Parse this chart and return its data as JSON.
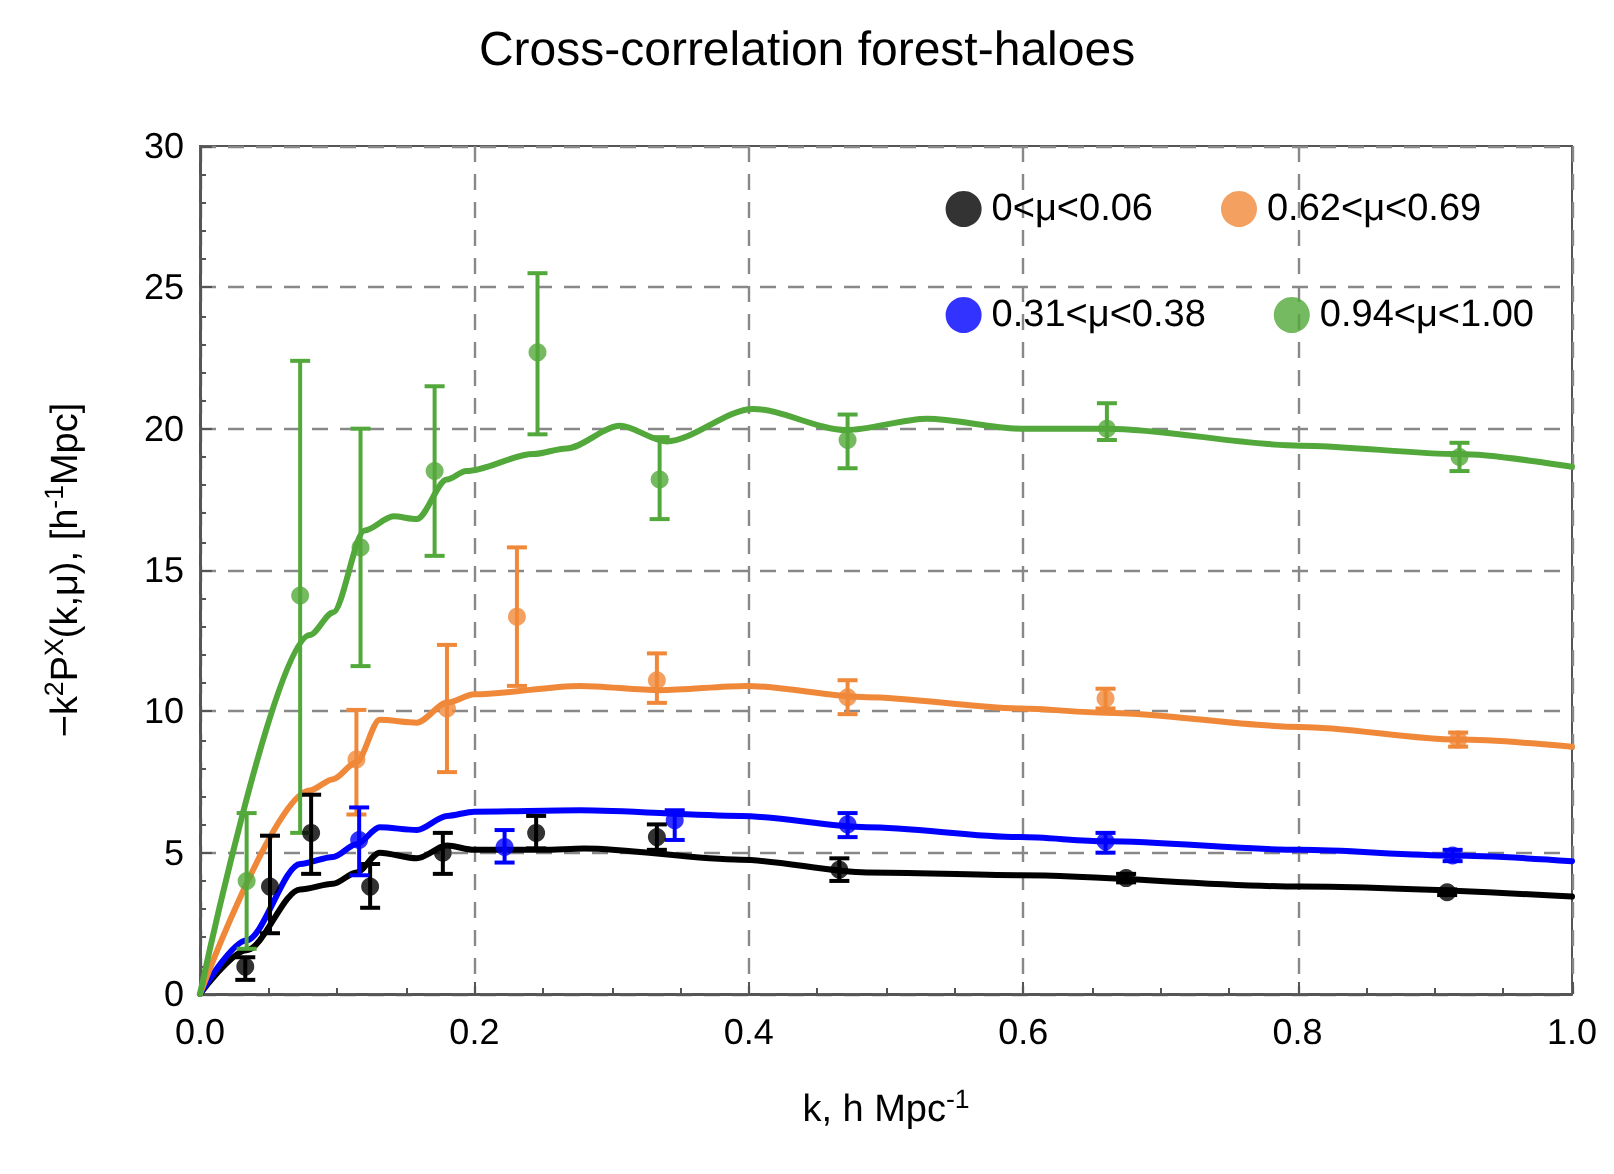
{
  "chart_data": {
    "type": "scatter",
    "title": "Cross-correlation forest-haloes",
    "xlabel": "k, h Mpc$^{-1}$",
    "ylabel": "−k$^{2}$P$^{X}$(k,μ), [h$^{-1}$Mpc]",
    "xlim": [
      0,
      1
    ],
    "xticks": [
      {
        "value": 0,
        "label": "0.0"
      },
      {
        "value": 0.2,
        "label": "0.2"
      },
      {
        "value": 0.4,
        "label": "0.4"
      },
      {
        "value": 0.6,
        "label": "0.6"
      },
      {
        "value": 0.8,
        "label": "0.8"
      },
      {
        "value": 1,
        "label": "1.0"
      }
    ],
    "ylim": [
      0,
      30
    ],
    "yticks": [
      0,
      5,
      10,
      15,
      20,
      25,
      30
    ],
    "grid": true,
    "legend": "top right",
    "marker": "circle",
    "series": [
      {
        "name": "0<μ<0.06",
        "color": "#000000",
        "x": [
          0.033,
          0.051,
          0.081,
          0.124,
          0.177,
          0.245,
          0.333,
          0.466,
          0.675,
          0.909
        ],
        "values": [
          0.97,
          3.8,
          5.7,
          3.8,
          5.0,
          5.7,
          5.55,
          4.4,
          4.1,
          3.6
        ],
        "errors": [
          [
            0.5,
            1.3
          ],
          [
            2.15,
            5.6
          ],
          [
            4.25,
            7.05
          ],
          [
            3.05,
            4.6
          ],
          [
            4.25,
            5.7
          ],
          [
            5.15,
            6.3
          ],
          [
            5.1,
            6.0
          ],
          [
            4.0,
            4.8
          ],
          [
            3.95,
            4.25
          ],
          [
            3.5,
            3.7
          ]
        ]
      },
      {
        "name": "0.62<μ<0.69",
        "color": "#f0883a",
        "x": [
          0.114,
          0.18,
          0.231,
          0.333,
          0.472,
          0.66,
          0.917
        ],
        "values": [
          8.3,
          10.1,
          13.35,
          11.1,
          10.5,
          10.45,
          9.0
        ],
        "errors": [
          [
            6.35,
            10.05
          ],
          [
            7.85,
            12.35
          ],
          [
            10.9,
            15.8
          ],
          [
            10.3,
            12.05
          ],
          [
            9.9,
            11.1
          ],
          [
            10.1,
            10.8
          ],
          [
            8.75,
            9.25
          ]
        ]
      },
      {
        "name": "0.31<μ<0.38",
        "color": "#0000ff",
        "x": [
          0.116,
          0.222,
          0.346,
          0.472,
          0.66,
          0.913
        ],
        "values": [
          5.45,
          5.2,
          6.15,
          6.0,
          5.4,
          4.9
        ],
        "errors": [
          [
            4.2,
            6.6
          ],
          [
            4.65,
            5.8
          ],
          [
            5.45,
            6.5
          ],
          [
            5.55,
            6.4
          ],
          [
            5.0,
            5.7
          ],
          [
            4.7,
            5.1
          ]
        ]
      },
      {
        "name": "0.94<μ<1.00",
        "color": "#52a83a",
        "x": [
          0.034,
          0.073,
          0.117,
          0.171,
          0.246,
          0.335,
          0.472,
          0.661,
          0.918
        ],
        "values": [
          4.0,
          14.1,
          15.8,
          18.5,
          22.7,
          18.2,
          19.6,
          20.0,
          19.0
        ],
        "errors": [
          [
            1.6,
            6.4
          ],
          [
            5.7,
            22.4
          ],
          [
            11.6,
            20.0
          ],
          [
            15.5,
            21.5
          ],
          [
            19.8,
            25.5
          ],
          [
            16.8,
            19.7
          ],
          [
            18.6,
            20.5
          ],
          [
            19.6,
            20.9
          ],
          [
            18.5,
            19.5
          ]
        ]
      },
      {
        "type": "line",
        "marker": "none",
        "color": "#000000",
        "x": [
          0,
          0.034,
          0.073,
          0.097,
          0.114,
          0.131,
          0.158,
          0.18,
          0.2,
          0.25,
          0.28,
          0.394,
          0.486,
          0.598,
          0.802,
          1.0
        ],
        "values": [
          0,
          1.55,
          3.7,
          3.9,
          4.3,
          5.0,
          4.8,
          5.25,
          5.1,
          5.1,
          5.15,
          4.75,
          4.3,
          4.2,
          3.8,
          3.45
        ]
      },
      {
        "type": "line",
        "marker": "none",
        "color": "#0000ff",
        "x": [
          0,
          0.034,
          0.073,
          0.097,
          0.114,
          0.131,
          0.158,
          0.18,
          0.2,
          0.277,
          0.394,
          0.486,
          0.598,
          0.66,
          0.802,
          0.913,
          1.0
        ],
        "values": [
          0,
          1.9,
          4.6,
          4.85,
          5.3,
          5.9,
          5.8,
          6.3,
          6.45,
          6.5,
          6.3,
          5.9,
          5.55,
          5.4,
          5.1,
          4.9,
          4.7
        ]
      },
      {
        "type": "line",
        "marker": "none",
        "color": "#f0883a",
        "x": [
          0,
          0.08,
          0.097,
          0.114,
          0.131,
          0.158,
          0.18,
          0.2,
          0.277,
          0.335,
          0.398,
          0.486,
          0.598,
          0.66,
          0.802,
          0.917,
          1.0
        ],
        "values": [
          0,
          7.2,
          7.6,
          8.2,
          9.7,
          9.6,
          10.3,
          10.6,
          10.9,
          10.75,
          10.9,
          10.5,
          10.1,
          9.95,
          9.45,
          9.0,
          8.75
        ]
      },
      {
        "type": "line",
        "marker": "none",
        "color": "#52a83a",
        "x": [
          0,
          0.08,
          0.097,
          0.12,
          0.141,
          0.158,
          0.18,
          0.194,
          0.243,
          0.267,
          0.306,
          0.34,
          0.403,
          0.471,
          0.53,
          0.598,
          0.661,
          0.802,
          0.918,
          1.0
        ],
        "values": [
          0,
          12.7,
          13.5,
          16.4,
          16.9,
          16.8,
          18.2,
          18.5,
          19.1,
          19.3,
          20.1,
          19.55,
          20.7,
          19.95,
          20.35,
          20.0,
          20.0,
          19.4,
          19.1,
          18.65
        ]
      }
    ]
  }
}
